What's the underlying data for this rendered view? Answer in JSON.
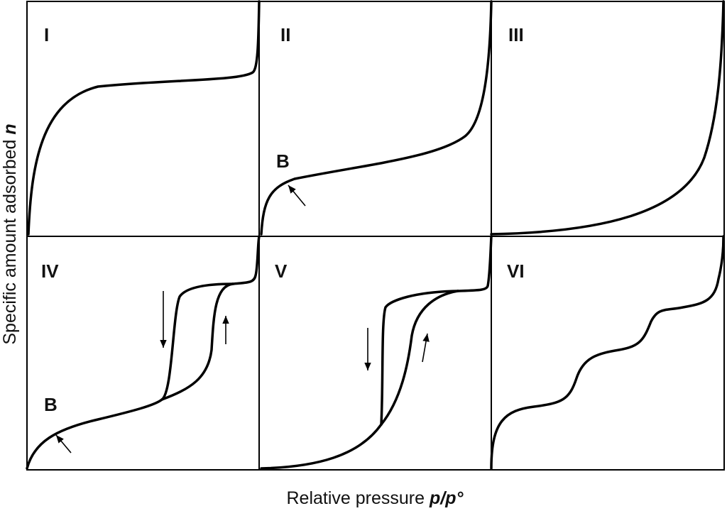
{
  "panels": [
    {
      "label": "I"
    },
    {
      "label": "II",
      "point_label": "B"
    },
    {
      "label": "III"
    },
    {
      "label": "IV",
      "point_label": "B"
    },
    {
      "label": "V"
    },
    {
      "label": "VI"
    }
  ],
  "x_axis": {
    "text": "Relative pressure",
    "symbol": "p/p°"
  },
  "y_axis": {
    "text": "Specific amount adsorbed",
    "symbol": "n"
  }
}
